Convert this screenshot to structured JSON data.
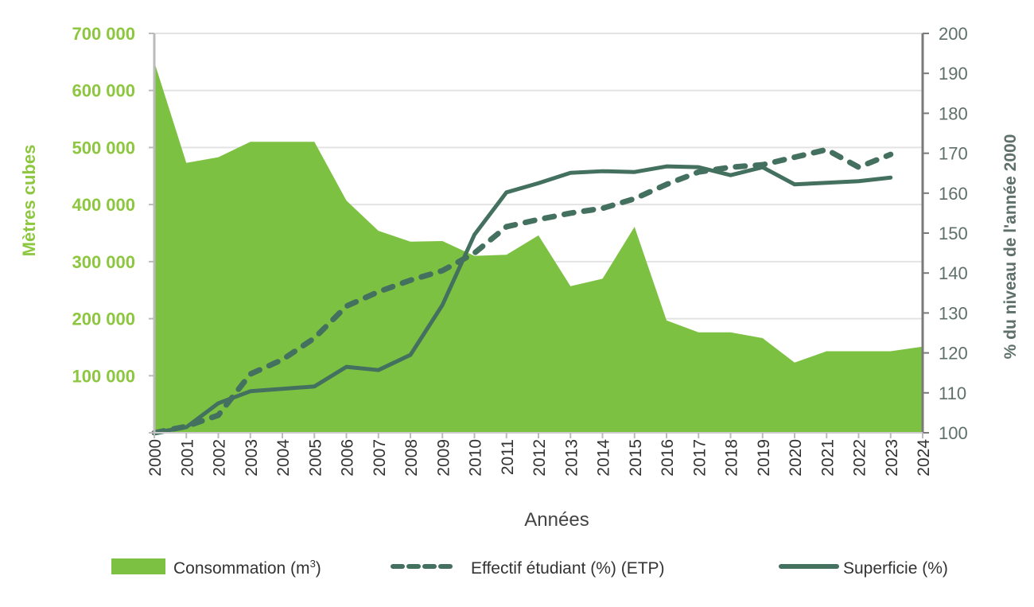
{
  "chart_data": {
    "type": "area+line",
    "xlabel": "Années",
    "ylabel_left": "Mètres cubes",
    "ylabel_right": "% du niveau de l'année 2000",
    "ylim_left": [
      0,
      700000
    ],
    "ylim_right": [
      100,
      200
    ],
    "yticks_left": [
      "",
      "100 000",
      "200 000",
      "300 000",
      "400 000",
      "500 000",
      "600 000",
      "700 000"
    ],
    "yticks_right": [
      "100",
      "110",
      "120",
      "130",
      "140",
      "150",
      "160",
      "170",
      "180",
      "190",
      "200"
    ],
    "grid": true,
    "legend_position": "bottom",
    "categories": [
      "2000",
      "2001",
      "2002",
      "2003",
      "2004",
      "2005",
      "2006",
      "2007",
      "2008",
      "2009",
      "2010",
      "2011",
      "2012",
      "2013",
      "2014",
      "2015",
      "2016",
      "2017",
      "2018",
      "2019",
      "2020",
      "2021",
      "2022",
      "2023",
      "2024"
    ],
    "series": [
      {
        "name": "Consommation (m³)",
        "axis": "left",
        "style": "area",
        "color": "#7dc142",
        "values": [
          650000,
          473000,
          483000,
          510000,
          510000,
          510000,
          407000,
          354000,
          335000,
          336000,
          310000,
          312000,
          346000,
          257000,
          270000,
          361000,
          197000,
          176000,
          176000,
          166000,
          123000,
          143000,
          143000,
          143000,
          151000
        ]
      },
      {
        "name": "Effectif étudiant (%) (ETP)",
        "axis": "right",
        "style": "dashed",
        "color": "#44705f",
        "values": [
          100,
          101.6,
          104.4,
          114.7,
          118.3,
          123.7,
          131.7,
          135.3,
          138.2,
          140.6,
          145,
          151.6,
          153.4,
          155,
          156.2,
          158.6,
          162.2,
          165.3,
          166.5,
          167.1,
          169,
          170.9,
          166.5,
          169.7,
          null
        ]
      },
      {
        "name": "Superficie (%)",
        "axis": "right",
        "style": "solid",
        "color": "#44705f",
        "values": [
          100,
          101.4,
          107.4,
          110.4,
          111,
          111.6,
          116.5,
          115.7,
          119.5,
          132,
          149.6,
          160.2,
          162.5,
          165.1,
          165.5,
          165.3,
          166.7,
          166.5,
          164.5,
          166.5,
          162.2,
          162.6,
          163,
          163.9,
          null
        ]
      }
    ],
    "legend": {
      "consommation_prefix": "Consommation (m",
      "consommation_sup": "3",
      "consommation_suffix": ")",
      "effectif": "Effectif étudiant (%) (ETP)",
      "superficie": "Superficie (%)"
    },
    "colors": {
      "left_axis_text": "#8dc63f",
      "right_axis_text": "#5e7069",
      "axis_line": "#7a7a7a",
      "grid": "#e3e3e3"
    }
  }
}
